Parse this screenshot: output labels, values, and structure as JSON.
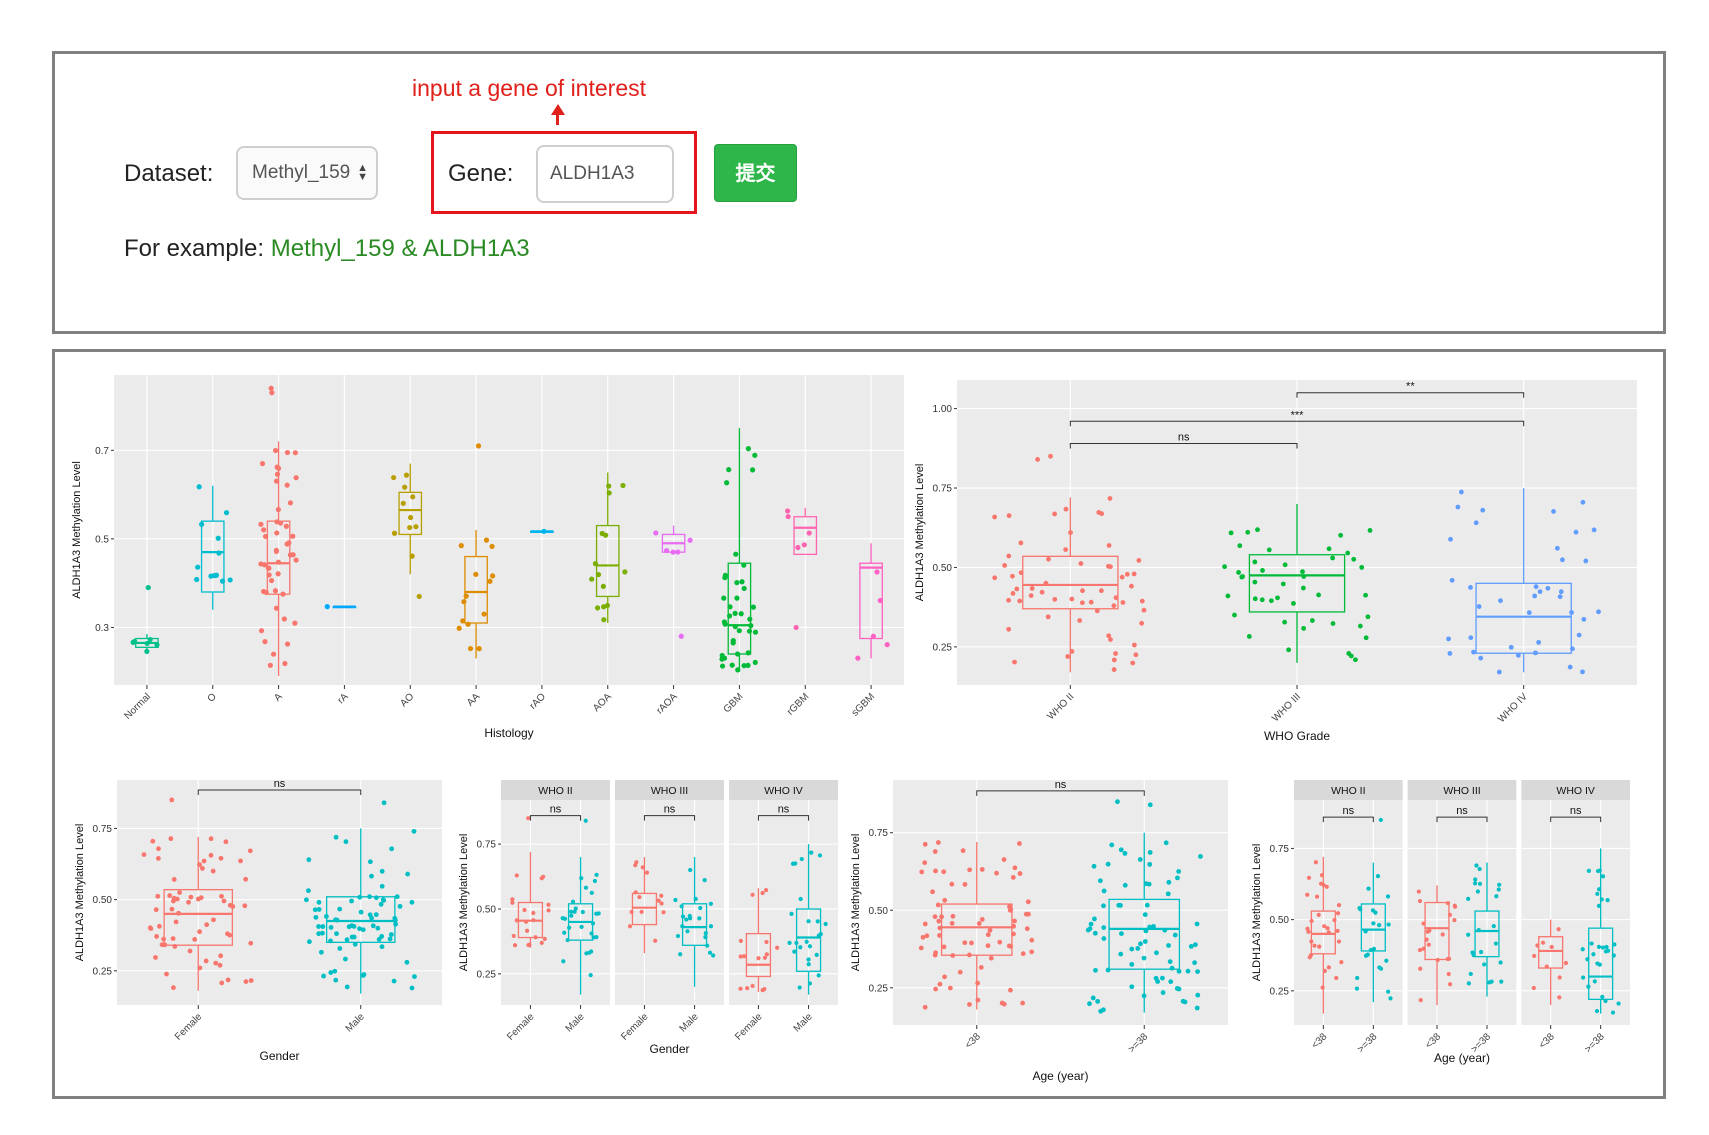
{
  "form": {
    "annotation": "input a gene of interest",
    "dataset_label": "Dataset:",
    "dataset_value": "Methyl_159",
    "gene_label": "Gene:",
    "gene_value": "ALDH1A3",
    "submit_label": "提交",
    "example_prefix": "For example:",
    "example_value": "Methyl_159 & ALDH1A3"
  },
  "colors": {
    "panel_border": "#808080",
    "annotation_red": "#e0201b",
    "submit_green": "#2fb64a",
    "example_green": "#2a8a23",
    "plot_bg": "#ebebeb",
    "grid": "#ffffff",
    "pink": "#f8766d",
    "cyan": "#00bfc4",
    "green": "#00ba38",
    "blue": "#619cff"
  },
  "chart_data": [
    {
      "id": "histology",
      "type": "box",
      "ylabel": "ALDH1A3 Methylation Level",
      "xlabel": "Histology",
      "yticks": [
        0.3,
        0.5,
        0.7
      ],
      "ylim": [
        0.17,
        0.87
      ],
      "categories": [
        "Normal",
        "O",
        "A",
        "rA",
        "AO",
        "AA",
        "rAO",
        "AOA",
        "rAOA",
        "GBM",
        "rGBM",
        "sGBM"
      ],
      "colors": [
        "#00c08b",
        "#00bdd0",
        "#f8766d",
        "#00a9ff",
        "#b79f00",
        "#de8c00",
        "#00b4ef",
        "#7cae00",
        "#e76bf3",
        "#00ba38",
        "#ff64b0",
        "#ff61c3"
      ],
      "boxes": [
        {
          "q1": 0.255,
          "med": 0.265,
          "q3": 0.275,
          "lo": 0.245,
          "hi": 0.285,
          "n": 6,
          "out": [
            0.39
          ]
        },
        {
          "q1": 0.38,
          "med": 0.47,
          "q3": 0.54,
          "lo": 0.34,
          "hi": 0.62,
          "n": 12
        },
        {
          "q1": 0.375,
          "med": 0.445,
          "q3": 0.54,
          "lo": 0.19,
          "hi": 0.72,
          "n": 48,
          "out": [
            0.84,
            0.83
          ]
        },
        {
          "q1": 0.347,
          "med": 0.347,
          "q3": 0.347,
          "lo": 0.347,
          "hi": 0.347,
          "n": 1
        },
        {
          "q1": 0.51,
          "med": 0.565,
          "q3": 0.605,
          "lo": 0.42,
          "hi": 0.67,
          "n": 10,
          "out": [
            0.37
          ]
        },
        {
          "q1": 0.31,
          "med": 0.38,
          "q3": 0.46,
          "lo": 0.23,
          "hi": 0.52,
          "n": 14,
          "out": [
            0.71
          ]
        },
        {
          "q1": 0.517,
          "med": 0.517,
          "q3": 0.517,
          "lo": 0.517,
          "hi": 0.517,
          "n": 1
        },
        {
          "q1": 0.37,
          "med": 0.44,
          "q3": 0.53,
          "lo": 0.31,
          "hi": 0.65,
          "n": 14
        },
        {
          "q1": 0.47,
          "med": 0.49,
          "q3": 0.51,
          "lo": 0.47,
          "hi": 0.53,
          "n": 5,
          "out": [
            0.28
          ]
        },
        {
          "q1": 0.24,
          "med": 0.305,
          "q3": 0.445,
          "lo": 0.2,
          "hi": 0.75,
          "n": 40
        },
        {
          "q1": 0.465,
          "med": 0.525,
          "q3": 0.55,
          "lo": 0.465,
          "hi": 0.57,
          "n": 5,
          "out": [
            0.3
          ]
        },
        {
          "q1": 0.275,
          "med": 0.435,
          "q3": 0.445,
          "lo": 0.23,
          "hi": 0.49,
          "n": 5
        }
      ]
    },
    {
      "id": "who-grade",
      "type": "box",
      "ylabel": "ALDH1A3 Methylation Level",
      "xlabel": "WHO Grade",
      "yticks": [
        0.25,
        0.5,
        0.75,
        1.0
      ],
      "ytick_labels": [
        "0.25",
        "0.50",
        "0.75",
        "1.00"
      ],
      "ylim": [
        0.13,
        1.09
      ],
      "categories": [
        "WHO II",
        "WHO III",
        "WHO IV"
      ],
      "colors": [
        "#f8766d",
        "#00ba38",
        "#619cff"
      ],
      "boxes": [
        {
          "q1": 0.37,
          "med": 0.445,
          "q3": 0.535,
          "lo": 0.17,
          "hi": 0.72,
          "n": 60,
          "out": [
            0.85,
            0.84
          ]
        },
        {
          "q1": 0.36,
          "med": 0.475,
          "q3": 0.54,
          "lo": 0.2,
          "hi": 0.7,
          "n": 45
        },
        {
          "q1": 0.23,
          "med": 0.345,
          "q3": 0.45,
          "lo": 0.17,
          "hi": 0.75,
          "n": 40
        }
      ],
      "brackets": [
        {
          "a": 0,
          "b": 1,
          "y": 0.89,
          "label": "ns"
        },
        {
          "a": 0,
          "b": 2,
          "y": 0.96,
          "label": "***"
        },
        {
          "a": 1,
          "b": 2,
          "y": 1.05,
          "label": "**"
        }
      ]
    },
    {
      "id": "gender",
      "type": "box",
      "ylabel": "ALDH1A3 Methylation Level",
      "xlabel": "Gender",
      "yticks": [
        0.25,
        0.5,
        0.75
      ],
      "ytick_labels": [
        "0.25",
        "0.50",
        "0.75"
      ],
      "ylim": [
        0.13,
        0.92
      ],
      "categories": [
        "Female",
        "Male"
      ],
      "colors": [
        "#f8766d",
        "#00bfc4"
      ],
      "boxes": [
        {
          "q1": 0.34,
          "med": 0.45,
          "q3": 0.535,
          "lo": 0.18,
          "hi": 0.72,
          "n": 65,
          "out": [
            0.85
          ]
        },
        {
          "q1": 0.35,
          "med": 0.425,
          "q3": 0.51,
          "lo": 0.17,
          "hi": 0.75,
          "n": 75,
          "out": [
            0.84
          ]
        }
      ],
      "brackets": [
        {
          "a": 0,
          "b": 1,
          "y": 0.885,
          "label": "ns"
        }
      ]
    },
    {
      "id": "gender-by-grade",
      "type": "faceted-box",
      "ylabel": "ALDH1A3 Methylation Level",
      "xlabel": "Gender",
      "yticks": [
        0.25,
        0.5,
        0.75
      ],
      "ytick_labels": [
        "0.25",
        "0.50",
        "0.75"
      ],
      "ylim": [
        0.13,
        0.92
      ],
      "categories": [
        "Female",
        "Male"
      ],
      "colors": [
        "#f8766d",
        "#00bfc4"
      ],
      "facets": [
        {
          "title": "WHO II",
          "label": "ns",
          "boxes": [
            {
              "q1": 0.39,
              "med": 0.455,
              "q3": 0.525,
              "lo": 0.35,
              "hi": 0.72,
              "n": 20,
              "out": [
                0.85
              ]
            },
            {
              "q1": 0.38,
              "med": 0.45,
              "q3": 0.52,
              "lo": 0.17,
              "hi": 0.7,
              "n": 28,
              "out": [
                0.84
              ]
            }
          ]
        },
        {
          "title": "WHO III",
          "label": "ns",
          "boxes": [
            {
              "q1": 0.44,
              "med": 0.505,
              "q3": 0.56,
              "lo": 0.33,
              "hi": 0.7,
              "n": 14
            },
            {
              "q1": 0.36,
              "med": 0.43,
              "q3": 0.52,
              "lo": 0.2,
              "hi": 0.7,
              "n": 22
            }
          ]
        },
        {
          "title": "WHO IV",
          "label": "ns",
          "boxes": [
            {
              "q1": 0.24,
              "med": 0.285,
              "q3": 0.405,
              "lo": 0.18,
              "hi": 0.58,
              "n": 16
            },
            {
              "q1": 0.26,
              "med": 0.39,
              "q3": 0.5,
              "lo": 0.17,
              "hi": 0.75,
              "n": 24
            }
          ]
        }
      ]
    },
    {
      "id": "age",
      "type": "box",
      "ylabel": "ALDH1A3 Methylation Level",
      "xlabel": "Age (year)",
      "yticks": [
        0.25,
        0.5,
        0.75
      ],
      "ytick_labels": [
        "0.25",
        "0.50",
        "0.75"
      ],
      "ylim": [
        0.13,
        0.92
      ],
      "categories": [
        "<38",
        ">=38"
      ],
      "colors": [
        "#f8766d",
        "#00bfc4"
      ],
      "boxes": [
        {
          "q1": 0.355,
          "med": 0.445,
          "q3": 0.52,
          "lo": 0.18,
          "hi": 0.72,
          "n": 75
        },
        {
          "q1": 0.31,
          "med": 0.44,
          "q3": 0.535,
          "lo": 0.17,
          "hi": 0.75,
          "n": 75,
          "out": [
            0.84,
            0.85
          ]
        }
      ],
      "brackets": [
        {
          "a": 0,
          "b": 1,
          "y": 0.885,
          "label": "ns"
        }
      ]
    },
    {
      "id": "age-by-grade",
      "type": "faceted-box",
      "ylabel": "ALDH1A3 Methylation Level",
      "xlabel": "Age (year)",
      "yticks": [
        0.25,
        0.5,
        0.75
      ],
      "ytick_labels": [
        "0.25",
        "0.50",
        "0.75"
      ],
      "ylim": [
        0.13,
        0.92
      ],
      "categories": [
        "<38",
        ">=38"
      ],
      "colors": [
        "#f8766d",
        "#00bfc4"
      ],
      "facets": [
        {
          "title": "WHO II",
          "label": "ns",
          "boxes": [
            {
              "q1": 0.38,
              "med": 0.45,
              "q3": 0.53,
              "lo": 0.17,
              "hi": 0.72,
              "n": 30
            },
            {
              "q1": 0.39,
              "med": 0.465,
              "q3": 0.555,
              "lo": 0.21,
              "hi": 0.7,
              "n": 22,
              "out": [
                0.85
              ]
            }
          ]
        },
        {
          "title": "WHO III",
          "label": "ns",
          "boxes": [
            {
              "q1": 0.36,
              "med": 0.47,
              "q3": 0.56,
              "lo": 0.2,
              "hi": 0.62,
              "n": 22
            },
            {
              "q1": 0.37,
              "med": 0.46,
              "q3": 0.53,
              "lo": 0.23,
              "hi": 0.7,
              "n": 24
            }
          ]
        },
        {
          "title": "WHO IV",
          "label": "ns",
          "boxes": [
            {
              "q1": 0.33,
              "med": 0.39,
              "q3": 0.44,
              "lo": 0.2,
              "hi": 0.5,
              "n": 10
            },
            {
              "q1": 0.22,
              "med": 0.3,
              "q3": 0.47,
              "lo": 0.17,
              "hi": 0.75,
              "n": 30
            }
          ]
        }
      ]
    }
  ]
}
